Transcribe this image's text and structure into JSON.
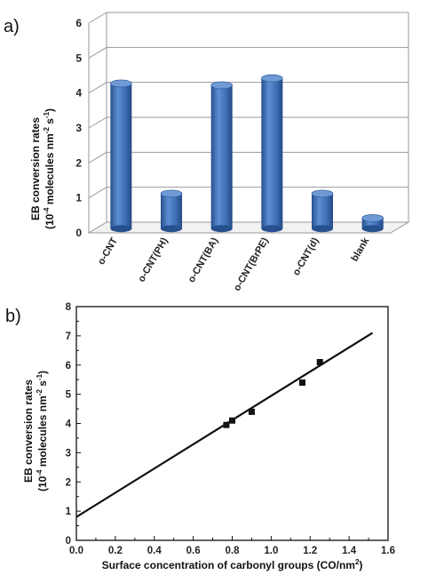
{
  "panel_a": {
    "label": "a)"
  },
  "panel_b": {
    "label": "b)"
  },
  "colors": {
    "bar": "#3f6fb5",
    "bar_dark": "#27508e",
    "bar_light": "#6f9ad6",
    "line": "#111111",
    "grid": "#9a9a9a"
  },
  "chart_data": [
    {
      "type": "bar",
      "categories": [
        "o-CNT",
        "o-CNT(PH)",
        "o-CNT(BA)",
        "o-CNT(BrPE)",
        "o-CNT(d)",
        "blank"
      ],
      "values": [
        4.15,
        1.0,
        4.1,
        4.3,
        1.0,
        0.3
      ],
      "ylabel": {
        "line1": "EB conversion rates",
        "line2_pre": "(10",
        "line2_sup1": "-4",
        "line2_mid": " molecules nm",
        "line2_sup2": "-2",
        "line2_mid2": " s",
        "line2_sup3": "-1",
        "line2_post": ")"
      },
      "xlabel": "",
      "ylim": [
        0,
        6
      ],
      "yticks": [
        "0",
        "1",
        "2",
        "3",
        "4",
        "5",
        "6"
      ],
      "ytick_values": [
        0,
        1,
        2,
        3,
        4,
        5,
        6
      ],
      "grid": true
    },
    {
      "type": "scatter",
      "x": [
        0.77,
        0.8,
        0.9,
        1.16,
        1.25
      ],
      "y": [
        3.95,
        4.1,
        4.4,
        5.4,
        6.1
      ],
      "fit_line": {
        "x": [
          0.0,
          1.52
        ],
        "y": [
          0.8,
          7.1
        ]
      },
      "xlabel": {
        "pre": "Surface concentration of carbonyl groups (CO/nm",
        "sup": "2",
        "post": ")"
      },
      "ylabel": {
        "line1": "EB conversion rates",
        "line2_pre": "(10",
        "line2_sup1": "-4",
        "line2_mid": " molecules nm",
        "line2_sup2": "-2",
        "line2_mid2": " s",
        "line2_sup3": "-1",
        "line2_post": ")"
      },
      "xlim": [
        0.0,
        1.6
      ],
      "ylim": [
        0,
        8
      ],
      "xticks": [
        "0.0",
        "0.2",
        "0.4",
        "0.6",
        "0.8",
        "1.0",
        "1.2",
        "1.4",
        "1.6"
      ],
      "xtick_values": [
        0.0,
        0.2,
        0.4,
        0.6,
        0.8,
        1.0,
        1.2,
        1.4,
        1.6
      ],
      "yticks": [
        "0",
        "1",
        "2",
        "3",
        "4",
        "5",
        "6",
        "7",
        "8"
      ],
      "ytick_values": [
        0,
        1,
        2,
        3,
        4,
        5,
        6,
        7,
        8
      ],
      "grid": false
    }
  ]
}
